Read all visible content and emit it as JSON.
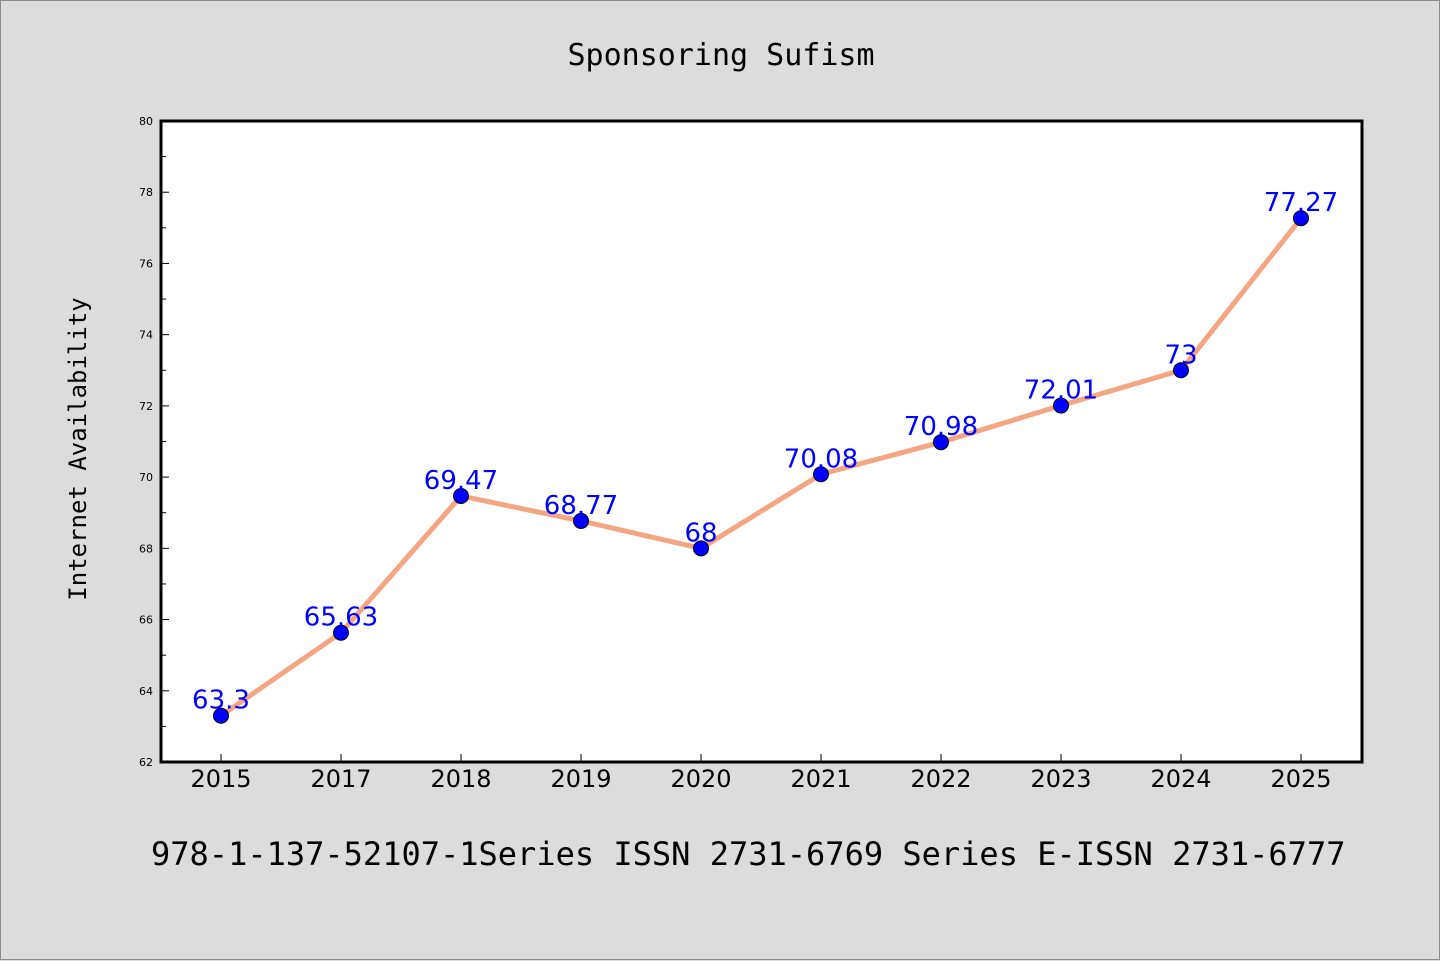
{
  "chart_data": {
    "type": "line",
    "title": "Sponsoring Sufism",
    "xlabel": "",
    "ylabel": "Internet Availability",
    "categories": [
      "2015",
      "2017",
      "2018",
      "2019",
      "2020",
      "2021",
      "2022",
      "2023",
      "2024",
      "2025"
    ],
    "series": [
      {
        "values": [
          63.3,
          65.63,
          69.47,
          68.77,
          68,
          70.08,
          70.98,
          72.01,
          73,
          77.27
        ],
        "labels": [
          "63.3",
          "65.63",
          "69.47",
          "68.77",
          "68",
          "70.08",
          "70.98",
          "72.01",
          "73",
          "77.27"
        ],
        "line_color": "#f4a582",
        "marker_color": "#0000ff"
      }
    ],
    "ylim": [
      62,
      80
    ],
    "yticks": [
      "62",
      "64",
      "66",
      "68",
      "70",
      "72",
      "74",
      "76",
      "78",
      "80"
    ],
    "grid": false,
    "legend": "none"
  },
  "footer": {
    "text": "978-1-137-52107-1Series ISSN 2731-6769 Series E-ISSN 2731-6777"
  }
}
